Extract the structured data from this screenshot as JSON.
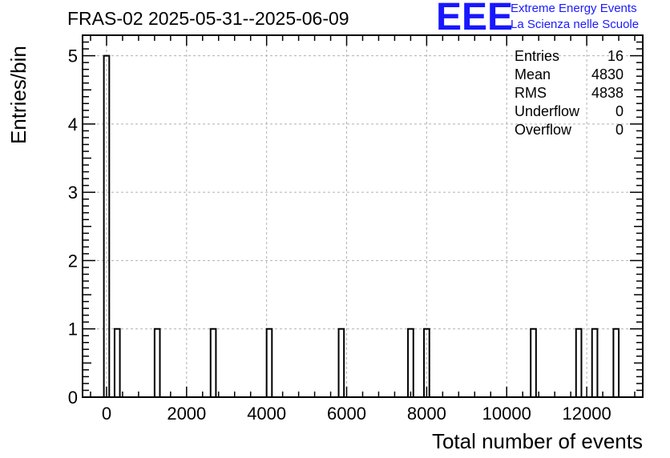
{
  "chart_data": {
    "type": "histogram",
    "title": "FRAS-02 2025-05-31--2025-06-09",
    "xlabel": "Total number of events",
    "ylabel": "Entries/bin",
    "xlim": [
      -600,
      13400
    ],
    "ylim": [
      0,
      5.3
    ],
    "bin_width": 133,
    "x_ticks": [
      0,
      2000,
      4000,
      6000,
      8000,
      10000,
      12000
    ],
    "y_ticks": [
      0,
      1,
      2,
      3,
      4,
      5
    ],
    "grid": true,
    "bins": [
      {
        "x_start": -67,
        "x_end": 67,
        "count": 5
      },
      {
        "x_start": 200,
        "x_end": 333,
        "count": 1
      },
      {
        "x_start": 1200,
        "x_end": 1333,
        "count": 1
      },
      {
        "x_start": 2600,
        "x_end": 2733,
        "count": 1
      },
      {
        "x_start": 4000,
        "x_end": 4133,
        "count": 1
      },
      {
        "x_start": 5800,
        "x_end": 5933,
        "count": 1
      },
      {
        "x_start": 7533,
        "x_end": 7667,
        "count": 1
      },
      {
        "x_start": 7933,
        "x_end": 8067,
        "count": 1
      },
      {
        "x_start": 10600,
        "x_end": 10733,
        "count": 1
      },
      {
        "x_start": 11733,
        "x_end": 11867,
        "count": 1
      },
      {
        "x_start": 12133,
        "x_end": 12267,
        "count": 1
      },
      {
        "x_start": 12667,
        "x_end": 12800,
        "count": 1
      }
    ],
    "stats": [
      {
        "label": "Entries",
        "value": "16"
      },
      {
        "label": "Mean",
        "value": "4830"
      },
      {
        "label": "RMS",
        "value": "4838"
      },
      {
        "label": "Underflow",
        "value": "0"
      },
      {
        "label": "Overflow",
        "value": "0"
      }
    ]
  },
  "branding": {
    "logo_text": "EEE",
    "line1": "Extreme Energy Events",
    "line2": "La Scienza nelle Scuole",
    "color": "#1a1aff"
  }
}
